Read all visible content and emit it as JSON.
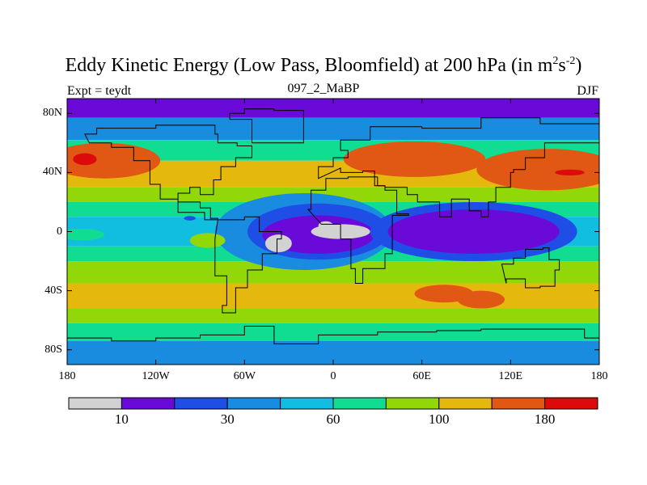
{
  "title": {
    "main": "Eddy Kinetic Energy (Low Pass, Bloomfield) at 200 hPa (in m",
    "sup1": "2",
    "mid": "s",
    "sup2": "-2",
    "tail": ")"
  },
  "subtitle_left": "Expt = teydt",
  "subtitle_center": "097_2_MaBP",
  "subtitle_right": "DJF",
  "colors": {
    "c0": "#d2d2d2",
    "c1": "#6a0ad8",
    "c2": "#1e4ee6",
    "c3": "#1a8ce0",
    "c4": "#12bee0",
    "c5": "#10dc92",
    "c6": "#92d808",
    "c7": "#e4b80c",
    "c8": "#e05814",
    "c9": "#dc0a0a"
  },
  "chart_data": {
    "type": "filled-contour-map",
    "title": "Eddy Kinetic Energy (Low Pass, Bloomfield) at 200 hPa (in m^2 s^-2)",
    "season": "DJF",
    "experiment": "teydt",
    "run": "097_2_MaBP",
    "xlim": [
      -180,
      180
    ],
    "ylim": [
      -90,
      90
    ],
    "xticks": [
      {
        "value": -180,
        "label": "180"
      },
      {
        "value": -120,
        "label": "120W"
      },
      {
        "value": -60,
        "label": "60W"
      },
      {
        "value": 0,
        "label": "0"
      },
      {
        "value": 60,
        "label": "60E"
      },
      {
        "value": 120,
        "label": "120E"
      },
      {
        "value": 180,
        "label": "180"
      }
    ],
    "yticks": [
      {
        "value": 80,
        "label": "80N"
      },
      {
        "value": 40,
        "label": "40N"
      },
      {
        "value": 0,
        "label": "0"
      },
      {
        "value": -40,
        "label": "40S"
      },
      {
        "value": -80,
        "label": "80S"
      }
    ],
    "colorbar": {
      "levels": [
        0,
        10,
        20,
        30,
        45,
        60,
        80,
        100,
        140,
        180,
        220
      ],
      "labels": [
        {
          "boundary": 1,
          "text": "10"
        },
        {
          "boundary": 3,
          "text": "30"
        },
        {
          "boundary": 5,
          "text": "60"
        },
        {
          "boundary": 7,
          "text": "100"
        },
        {
          "boundary": 9,
          "text": "180"
        }
      ]
    },
    "zonal_bands": [
      {
        "lat": [
          77,
          90
        ],
        "level": 1
      },
      {
        "lat": [
          62,
          77
        ],
        "level": 3
      },
      {
        "lat": [
          48,
          62
        ],
        "level": 5
      },
      {
        "lat": [
          30,
          48
        ],
        "level": 7
      },
      {
        "lat": [
          20,
          30
        ],
        "level": 6
      },
      {
        "lat": [
          10,
          20
        ],
        "level": 5
      },
      {
        "lat": [
          -10,
          10
        ],
        "level": 4
      },
      {
        "lat": [
          -20,
          -10
        ],
        "level": 5
      },
      {
        "lat": [
          -35,
          -20
        ],
        "level": 6
      },
      {
        "lat": [
          -52,
          -35
        ],
        "level": 7
      },
      {
        "lat": [
          -62,
          -52
        ],
        "level": 6
      },
      {
        "lat": [
          -74,
          -62
        ],
        "level": 5
      },
      {
        "lat": [
          -90,
          -74
        ],
        "level": 3
      }
    ],
    "features": [
      {
        "lon": -155,
        "lat": 48,
        "rlon": 38,
        "rlat": 12,
        "level": 8
      },
      {
        "lon": -168,
        "lat": 49,
        "rlon": 8,
        "rlat": 4,
        "level": 9
      },
      {
        "lon": 55,
        "lat": 49,
        "rlon": 48,
        "rlat": 12,
        "level": 8
      },
      {
        "lon": 145,
        "lat": 42,
        "rlon": 48,
        "rlat": 14,
        "level": 8
      },
      {
        "lon": 160,
        "lat": 40,
        "rlon": 10,
        "rlat": 2,
        "level": 9
      },
      {
        "lon": 75,
        "lat": -42,
        "rlon": 20,
        "rlat": 6,
        "level": 8
      },
      {
        "lon": 100,
        "lat": -46,
        "rlon": 16,
        "rlat": 6,
        "level": 8
      },
      {
        "lon": -20,
        "lat": 0,
        "rlon": 60,
        "rlat": 26,
        "level": 3
      },
      {
        "lon": -10,
        "lat": 0,
        "rlon": 48,
        "rlat": 19,
        "level": 2
      },
      {
        "lon": -10,
        "lat": -2,
        "rlon": 38,
        "rlat": 13,
        "level": 1
      },
      {
        "lon": -37,
        "lat": -8,
        "rlon": 9,
        "rlat": 6,
        "level": 0
      },
      {
        "lon": 5,
        "lat": 0,
        "rlon": 20,
        "rlat": 5,
        "level": 0
      },
      {
        "lon": -5,
        "lat": 4,
        "rlon": 5,
        "rlat": 3,
        "level": 0
      },
      {
        "lon": 95,
        "lat": 0,
        "rlon": 70,
        "rlat": 20,
        "level": 2
      },
      {
        "lon": 95,
        "lat": 0,
        "rlon": 58,
        "rlat": 15,
        "level": 1
      },
      {
        "lon": -170,
        "lat": -2,
        "rlon": 15,
        "rlat": 4,
        "level": 5
      },
      {
        "lon": -85,
        "lat": -6,
        "rlon": 12,
        "rlat": 5,
        "level": 6
      },
      {
        "lon": -97,
        "lat": 9,
        "rlon": 4,
        "rlat": 1.5,
        "level": 2
      }
    ]
  }
}
